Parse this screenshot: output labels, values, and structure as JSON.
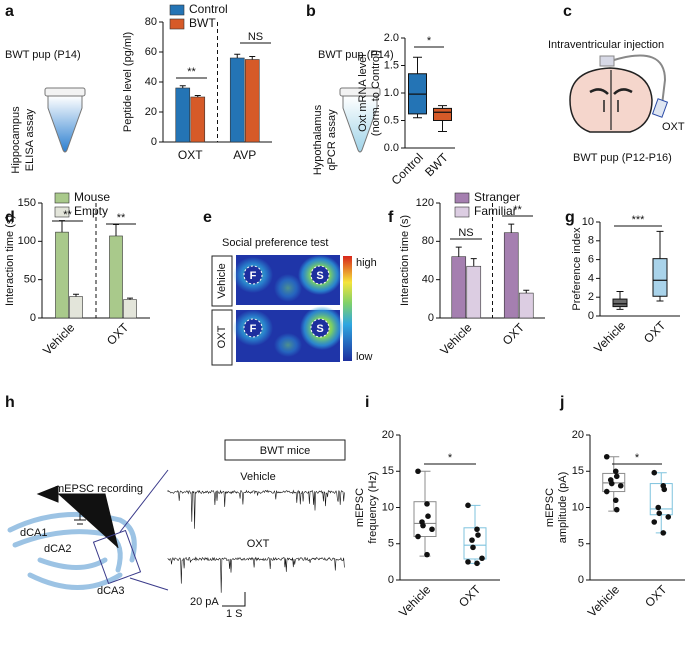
{
  "letters": {
    "c": "c",
    "e": "e",
    "h": "h"
  },
  "illustrations": {
    "a": {
      "subject": "BWT pup (P14)",
      "assay": [
        "Hippocampus",
        "ELISA assay"
      ]
    },
    "b": {
      "subject": "BWT pup (P14)",
      "assay": [
        "Hypothalamus",
        "qPCR assay"
      ]
    },
    "c": {
      "title": "Intraventricular injection",
      "drug": "OXT",
      "subject": "BWT pup (P12-P16)"
    },
    "e": {
      "title": "Social preference test",
      "rows": [
        "Vehicle",
        "OXT"
      ],
      "chambers": [
        "F",
        "S"
      ],
      "scale": [
        "high",
        "low"
      ]
    },
    "h": {
      "recording": "mEPSC recording",
      "regions": [
        "dCA1",
        "dCA2",
        "dCA3"
      ],
      "title": "BWT mice",
      "traces": [
        "Vehicle",
        "OXT"
      ],
      "scale": [
        "20 pA",
        "1 S"
      ]
    }
  },
  "chart_data": [
    {
      "panel": "a",
      "type": "bar",
      "categories": [
        "OXT",
        "AVP"
      ],
      "ylabel": [
        "Peptide level (pg/ml)"
      ],
      "series": [
        {
          "name": "Control",
          "color": "#2474b5",
          "values": [
            36,
            56
          ],
          "errors": [
            1.5,
            2.5
          ]
        },
        {
          "name": "BWT",
          "color": "#d65a28",
          "values": [
            30,
            55
          ],
          "errors": [
            1,
            2
          ]
        }
      ],
      "ylim": [
        0,
        80
      ],
      "yticks": [
        0,
        20,
        40,
        60,
        80
      ],
      "divider": true,
      "annotations": [
        "**",
        "NS"
      ]
    },
    {
      "panel": "b",
      "type": "box",
      "ylabel": [
        "Oxt mRNA level",
        "(norm. to Control)"
      ],
      "boxes": [
        {
          "name": "Control",
          "color": "#2474b5",
          "min": 0.55,
          "q1": 0.62,
          "median": 0.98,
          "q3": 1.35,
          "max": 1.65
        },
        {
          "name": "BWT",
          "color": "#d65a28",
          "min": 0.3,
          "q1": 0.5,
          "median": 0.65,
          "q3": 0.72,
          "max": 0.77
        }
      ],
      "ylim": [
        0,
        2
      ],
      "yticks": [
        {
          "value": 0,
          "label": "0.0"
        },
        {
          "value": 0.5,
          "label": "0.5"
        },
        {
          "value": 1,
          "label": "1.0"
        },
        {
          "value": 1.5,
          "label": "1.5"
        },
        {
          "value": 2,
          "label": "2.0"
        }
      ],
      "annotations": [
        "*"
      ]
    },
    {
      "panel": "d",
      "type": "bar",
      "categories": [
        "Vehicle",
        "OXT"
      ],
      "ylabel": [
        "Interaction time (s)"
      ],
      "series": [
        {
          "name": "Mouse",
          "color": "#a9c98b",
          "values": [
            112,
            107
          ],
          "errors": [
            15,
            15
          ]
        },
        {
          "name": "Empty",
          "color": "#e3e5da",
          "values": [
            28,
            24
          ],
          "errors": [
            3,
            2
          ]
        }
      ],
      "ylim": [
        0,
        150
      ],
      "yticks": [
        0,
        50,
        100,
        150
      ],
      "divider": true,
      "annotations": [
        "**",
        "**"
      ]
    },
    {
      "panel": "f",
      "type": "bar",
      "categories": [
        "Vehicle",
        "OXT"
      ],
      "ylabel": [
        "Interaction time (s)"
      ],
      "series": [
        {
          "name": "Stranger",
          "color": "#a57fb0",
          "values": [
            64,
            89
          ],
          "errors": [
            10,
            9
          ]
        },
        {
          "name": "Familiar",
          "color": "#dccde2",
          "values": [
            54,
            26
          ],
          "errors": [
            8,
            3
          ]
        }
      ],
      "ylim": [
        0,
        120
      ],
      "yticks": [
        0,
        40,
        80,
        120
      ],
      "divider": true,
      "annotations": [
        "NS",
        "**"
      ]
    },
    {
      "panel": "g",
      "type": "box",
      "ylabel": [
        "Preference index"
      ],
      "boxes": [
        {
          "name": "Vehicle",
          "color": "#6b6b6b",
          "min": 0.7,
          "q1": 1.0,
          "median": 1.3,
          "q3": 1.8,
          "max": 2.6
        },
        {
          "name": "OXT",
          "color": "#a9d3ea",
          "min": 1.6,
          "q1": 2.1,
          "median": 3.8,
          "q3": 6.1,
          "max": 9.0
        }
      ],
      "ylim": [
        0,
        10
      ],
      "yticks": [
        0,
        2,
        4,
        6,
        8,
        10
      ],
      "annotations": [
        "***"
      ]
    },
    {
      "panel": "i",
      "type": "box",
      "ylabel": [
        "mEPSC",
        "frequency (Hz)"
      ],
      "boxes": [
        {
          "name": "Vehicle",
          "color": "#8c8c8c",
          "min": 3.3,
          "q1": 6,
          "median": 7.8,
          "q3": 10.8,
          "max": 15,
          "points": [
            15,
            10.5,
            8.8,
            8,
            7.5,
            7,
            6,
            3.5
          ]
        },
        {
          "name": "OXT",
          "color": "#7fc3de",
          "min": 2.3,
          "q1": 2.9,
          "median": 4.8,
          "q3": 7.2,
          "max": 10.3,
          "points": [
            10.3,
            7,
            6.2,
            5.5,
            4.5,
            3,
            2.5,
            2.3
          ]
        }
      ],
      "ylim": [
        0,
        20
      ],
      "yticks": [
        0,
        5,
        10,
        15,
        20
      ],
      "annotations": [
        "*"
      ]
    },
    {
      "panel": "j",
      "type": "box",
      "ylabel": [
        "mEPSC",
        "amplitude (pA)"
      ],
      "boxes": [
        {
          "name": "Vehicle",
          "color": "#8c8c8c",
          "min": 9.5,
          "q1": 12.2,
          "median": 13.4,
          "q3": 14.7,
          "max": 17,
          "points": [
            17,
            15,
            14.3,
            13.8,
            13.3,
            13,
            12.2,
            11,
            9.7
          ]
        },
        {
          "name": "OXT",
          "color": "#7fc3de",
          "min": 6.5,
          "q1": 9,
          "median": 9.8,
          "q3": 13.3,
          "max": 14.8,
          "points": [
            14.8,
            13,
            12.5,
            10,
            9.2,
            8.7,
            8,
            6.5
          ]
        }
      ],
      "ylim": [
        0,
        20
      ],
      "yticks": [
        0,
        5,
        10,
        15,
        20
      ],
      "annotations": [
        "*"
      ]
    }
  ]
}
